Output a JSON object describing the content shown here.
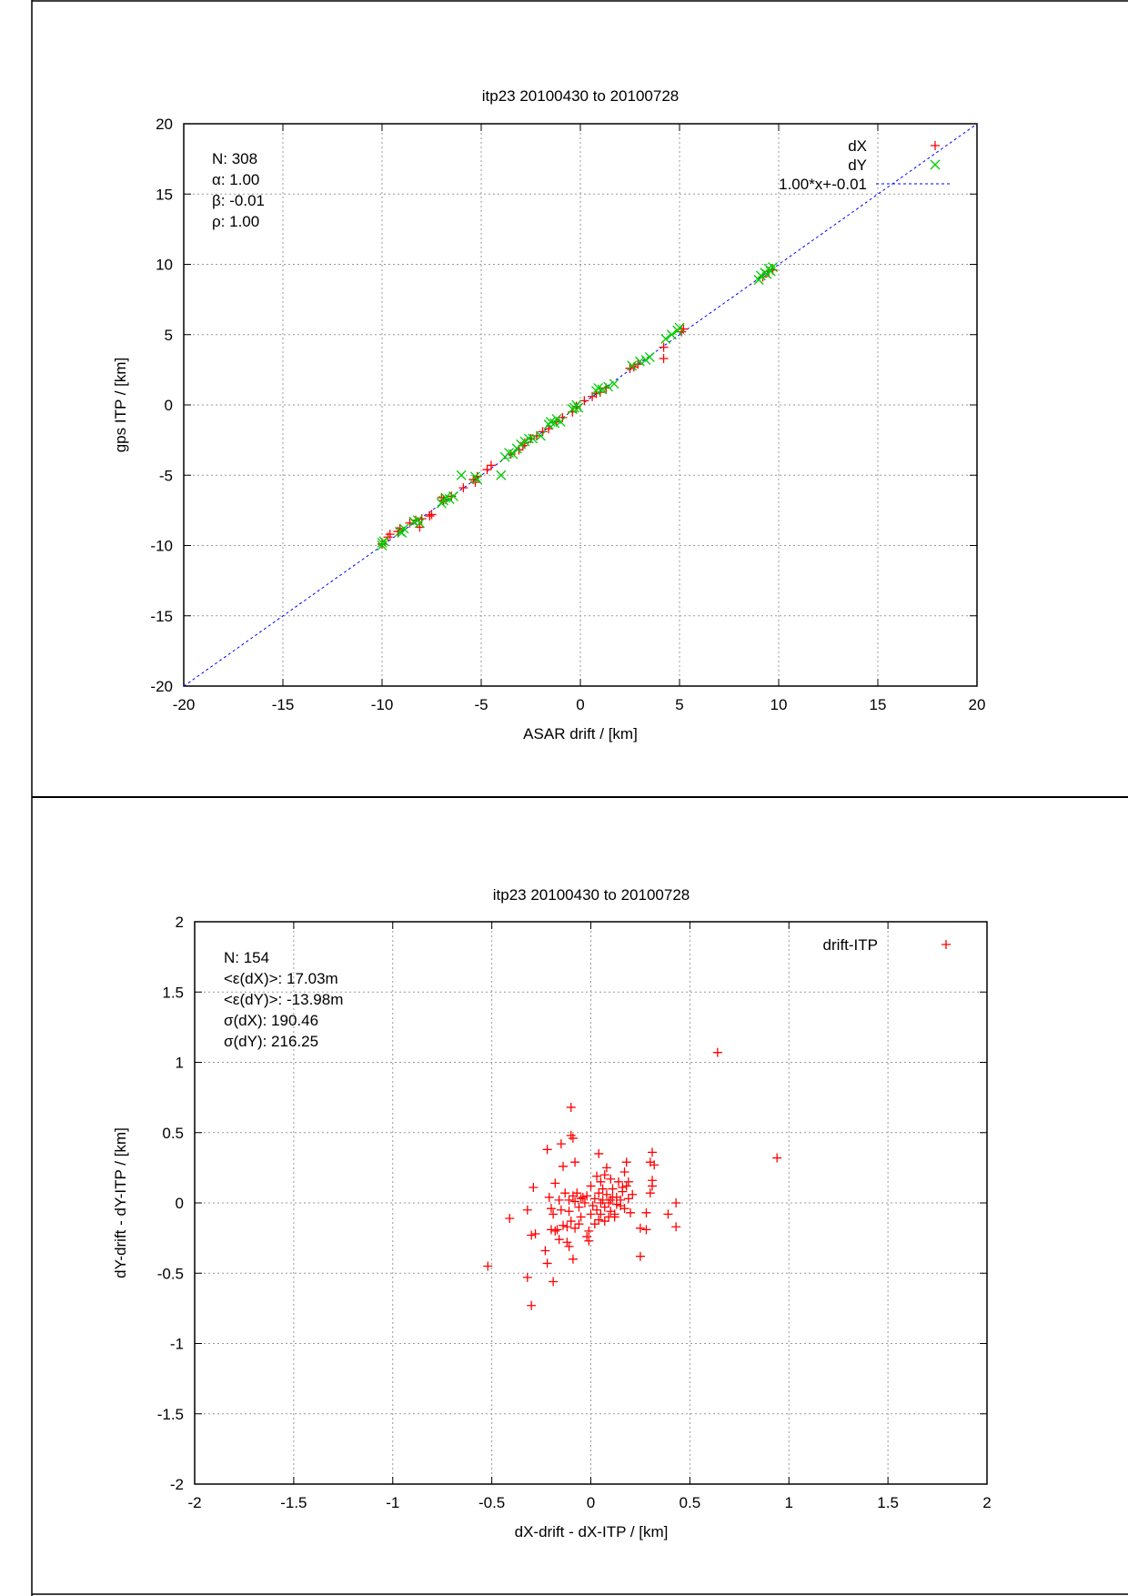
{
  "chart_data": [
    {
      "type": "scatter",
      "title": "itp23 20100430 to 20100728",
      "xlabel": "ASAR drift / [km]",
      "ylabel": "gps ITP / [km]",
      "xlim": [
        -20,
        20
      ],
      "ylim": [
        -20,
        20
      ],
      "xticks": [
        -20,
        -15,
        -10,
        -5,
        0,
        5,
        10,
        15,
        20
      ],
      "yticks": [
        -20,
        -15,
        -10,
        -5,
        0,
        5,
        10,
        15,
        20
      ],
      "grid": true,
      "legend_position": "top-right",
      "annotation": [
        "N: 308",
        "α: 1.00",
        "β: -0.01",
        "ρ: 1.00"
      ],
      "series": [
        {
          "name": "dX",
          "marker": "plus",
          "color": "#ff0000",
          "points": [
            [
              -10,
              -9.9
            ],
            [
              -9.7,
              -9.4
            ],
            [
              -9.6,
              -9.2
            ],
            [
              -9.2,
              -9.0
            ],
            [
              -9.1,
              -8.8
            ],
            [
              -8.6,
              -8.4
            ],
            [
              -8.3,
              -8.2
            ],
            [
              -8.1,
              -8.7
            ],
            [
              -8.0,
              -8.1
            ],
            [
              -7.6,
              -7.9
            ],
            [
              -7.5,
              -7.8
            ],
            [
              -7.0,
              -6.6
            ],
            [
              -6.9,
              -6.8
            ],
            [
              -6.5,
              -6.5
            ],
            [
              -5.9,
              -5.9
            ],
            [
              -5.4,
              -5.3
            ],
            [
              -5.3,
              -5.5
            ],
            [
              -5.2,
              -5.1
            ],
            [
              -4.7,
              -4.6
            ],
            [
              -4.5,
              -4.3
            ],
            [
              -3.5,
              -3.5
            ],
            [
              -3.1,
              -3.2
            ],
            [
              -2.9,
              -2.9
            ],
            [
              -2.8,
              -2.7
            ],
            [
              -2.5,
              -2.4
            ],
            [
              -2.2,
              -2.2
            ],
            [
              -1.9,
              -1.9
            ],
            [
              -1.6,
              -1.7
            ],
            [
              -1.2,
              -1.2
            ],
            [
              -0.9,
              -0.9
            ],
            [
              -0.4,
              -0.5
            ],
            [
              -0.2,
              -0.1
            ],
            [
              0.2,
              0.3
            ],
            [
              0.6,
              0.6
            ],
            [
              0.8,
              0.8
            ],
            [
              1.0,
              0.9
            ],
            [
              1.3,
              1.2
            ],
            [
              2.5,
              2.6
            ],
            [
              2.7,
              2.7
            ],
            [
              2.9,
              2.9
            ],
            [
              4.2,
              4.1
            ],
            [
              4.2,
              3.3
            ],
            [
              5.1,
              5.2
            ],
            [
              5.2,
              5.4
            ],
            [
              9.2,
              9.1
            ],
            [
              9.5,
              9.5
            ],
            [
              9.7,
              9.6
            ]
          ]
        },
        {
          "name": "dY",
          "marker": "cross",
          "color": "#00cc00",
          "points": [
            [
              -10,
              -9.8
            ],
            [
              -10,
              -10
            ],
            [
              -9.9,
              -9.7
            ],
            [
              -9.1,
              -9.0
            ],
            [
              -9.0,
              -9.1
            ],
            [
              -8.9,
              -8.8
            ],
            [
              -8.4,
              -8.3
            ],
            [
              -8.2,
              -8.2
            ],
            [
              -8.1,
              -8.4
            ],
            [
              -7.0,
              -7.0
            ],
            [
              -6.9,
              -6.8
            ],
            [
              -6.8,
              -6.6
            ],
            [
              -6.6,
              -6.7
            ],
            [
              -6.4,
              -6.5
            ],
            [
              -6.0,
              -5.0
            ],
            [
              -5.3,
              -5.1
            ],
            [
              -5.2,
              -5.3
            ],
            [
              -4.0,
              -5.0
            ],
            [
              -3.8,
              -3.7
            ],
            [
              -3.6,
              -3.4
            ],
            [
              -3.4,
              -3.5
            ],
            [
              -3.2,
              -3.1
            ],
            [
              -3.0,
              -2.8
            ],
            [
              -2.8,
              -2.6
            ],
            [
              -2.6,
              -2.4
            ],
            [
              -2.4,
              -2.4
            ],
            [
              -2.0,
              -2.2
            ],
            [
              -1.6,
              -1.4
            ],
            [
              -1.5,
              -1.2
            ],
            [
              -1.3,
              -1.3
            ],
            [
              -1.2,
              -1.0
            ],
            [
              -1.0,
              -1.2
            ],
            [
              -0.4,
              -0.3
            ],
            [
              -0.3,
              -0.2
            ],
            [
              -0.2,
              0.0
            ],
            [
              -0.1,
              -0.2
            ],
            [
              0.8,
              1.0
            ],
            [
              0.9,
              1.2
            ],
            [
              1.1,
              1.1
            ],
            [
              1.4,
              1.3
            ],
            [
              1.7,
              1.5
            ],
            [
              2.6,
              2.8
            ],
            [
              3.0,
              3.1
            ],
            [
              3.3,
              3.2
            ],
            [
              3.5,
              3.4
            ],
            [
              4.3,
              4.7
            ],
            [
              4.6,
              5.0
            ],
            [
              4.9,
              5.3
            ],
            [
              5.0,
              5.5
            ],
            [
              9.0,
              8.9
            ],
            [
              9.1,
              9.2
            ],
            [
              9.3,
              9.4
            ],
            [
              9.4,
              9.3
            ],
            [
              9.5,
              9.7
            ],
            [
              9.6,
              9.5
            ],
            [
              9.7,
              9.8
            ]
          ]
        }
      ],
      "fit_line": {
        "name": "1.00*x+-0.01",
        "slope": 1.0,
        "intercept": -0.01,
        "color": "#0000ff",
        "style": "dashed"
      }
    },
    {
      "type": "scatter",
      "title": "itp23 20100430 to 20100728",
      "xlabel": "dX-drift - dX-ITP / [km]",
      "ylabel": "dY-drift - dY-ITP / [km]",
      "xlim": [
        -2,
        2
      ],
      "ylim": [
        -2,
        2
      ],
      "xticks": [
        -2,
        -1.5,
        -1,
        -0.5,
        0,
        0.5,
        1,
        1.5,
        2
      ],
      "yticks": [
        -2,
        -1.5,
        -1,
        -0.5,
        0,
        0.5,
        1,
        1.5,
        2
      ],
      "grid": true,
      "legend_position": "top-right",
      "annotation": [
        "N: 154",
        "<ε(dX)>:  17.03m",
        "<ε(dY)>: -13.98m",
        "σ(dX):  190.46",
        "σ(dY):  216.25"
      ],
      "series": [
        {
          "name": "drift-ITP",
          "marker": "plus",
          "color": "#ff0000",
          "points": [
            [
              0.64,
              1.07
            ],
            [
              0.94,
              0.32
            ],
            [
              -0.52,
              -0.45
            ],
            [
              -0.3,
              -0.73
            ],
            [
              -0.32,
              -0.53
            ],
            [
              -0.19,
              -0.56
            ],
            [
              -0.1,
              0.68
            ],
            [
              -0.1,
              0.48
            ],
            [
              -0.09,
              0.46
            ],
            [
              -0.22,
              0.38
            ],
            [
              -0.15,
              0.42
            ],
            [
              -0.08,
              0.29
            ],
            [
              0.04,
              0.35
            ],
            [
              -0.41,
              -0.11
            ],
            [
              -0.32,
              -0.05
            ],
            [
              -0.29,
              0.11
            ],
            [
              -0.3,
              -0.23
            ],
            [
              -0.28,
              -0.22
            ],
            [
              -0.23,
              -0.34
            ],
            [
              -0.22,
              -0.43
            ],
            [
              -0.09,
              -0.4
            ],
            [
              0.25,
              -0.38
            ],
            [
              0.43,
              -0.17
            ],
            [
              0.43,
              0.0
            ],
            [
              0.39,
              -0.08
            ],
            [
              0.31,
              0.36
            ],
            [
              0.32,
              0.27
            ],
            [
              0.3,
              0.29
            ],
            [
              0.31,
              0.12
            ],
            [
              0.31,
              0.16
            ],
            [
              0.3,
              0.07
            ],
            [
              0.28,
              -0.07
            ],
            [
              0.25,
              -0.18
            ],
            [
              0.28,
              -0.19
            ],
            [
              -0.02,
              -0.24
            ],
            [
              -0.01,
              -0.27
            ],
            [
              -0.11,
              -0.31
            ],
            [
              -0.16,
              -0.26
            ],
            [
              -0.12,
              -0.28
            ],
            [
              0.18,
              0.29
            ],
            [
              0.17,
              0.22
            ],
            [
              0.1,
              0.17
            ],
            [
              0.07,
              0.2
            ],
            [
              0.05,
              0.15
            ],
            [
              -0.14,
              0.26
            ],
            [
              -0.18,
              0.14
            ],
            [
              -0.21,
              0.04
            ],
            [
              -0.2,
              -0.04
            ],
            [
              -0.19,
              -0.08
            ],
            [
              -0.17,
              -0.19
            ],
            [
              -0.18,
              -0.2
            ],
            [
              -0.14,
              -0.16
            ],
            [
              -0.12,
              -0.17
            ],
            [
              -0.1,
              -0.13
            ],
            [
              -0.08,
              -0.18
            ],
            [
              -0.06,
              -0.15
            ],
            [
              -0.05,
              -0.1
            ],
            [
              -0.13,
              0.07
            ],
            [
              -0.11,
              0.02
            ],
            [
              -0.09,
              0.05
            ],
            [
              -0.07,
              0.07
            ],
            [
              -0.05,
              0.03
            ],
            [
              -0.03,
              0.0
            ],
            [
              -0.02,
              0.05
            ],
            [
              0.0,
              0.12
            ],
            [
              0.01,
              -0.02
            ],
            [
              0.02,
              0.03
            ],
            [
              0.03,
              -0.05
            ],
            [
              0.04,
              0.07
            ],
            [
              0.05,
              -0.08
            ],
            [
              0.06,
              0.02
            ],
            [
              0.07,
              -0.03
            ],
            [
              0.08,
              0.06
            ],
            [
              0.09,
              0.0
            ],
            [
              0.1,
              -0.06
            ],
            [
              0.11,
              0.1
            ],
            [
              0.12,
              -0.1
            ],
            [
              0.13,
              0.04
            ],
            [
              0.14,
              0.15
            ],
            [
              0.15,
              -0.02
            ],
            [
              0.16,
              0.08
            ],
            [
              0.17,
              -0.04
            ],
            [
              0.18,
              0.12
            ],
            [
              0.19,
              0.03
            ],
            [
              0.2,
              -0.07
            ],
            [
              0.21,
              0.06
            ],
            [
              0.07,
              -0.13
            ],
            [
              0.09,
              -0.1
            ],
            [
              0.12,
              -0.08
            ],
            [
              0.15,
              0.02
            ],
            [
              0.06,
              0.1
            ],
            [
              0.04,
              -0.12
            ],
            [
              0.02,
              -0.15
            ],
            [
              -0.01,
              -0.2
            ],
            [
              -0.04,
              0.04
            ],
            [
              -0.06,
              -0.03
            ],
            [
              -0.08,
              0.01
            ],
            [
              -0.15,
              -0.05
            ],
            [
              -0.16,
              0.02
            ],
            [
              0.0,
              -0.08
            ],
            [
              0.03,
              0.19
            ],
            [
              0.08,
              0.25
            ],
            [
              0.11,
              0.04
            ],
            [
              0.13,
              -0.01
            ],
            [
              0.16,
              0.11
            ],
            [
              0.19,
              0.15
            ],
            [
              -0.2,
              -0.19
            ],
            [
              -0.11,
              -0.06
            ],
            [
              0.05,
              0.0
            ],
            [
              0.1,
              0.02
            ]
          ]
        }
      ]
    }
  ]
}
